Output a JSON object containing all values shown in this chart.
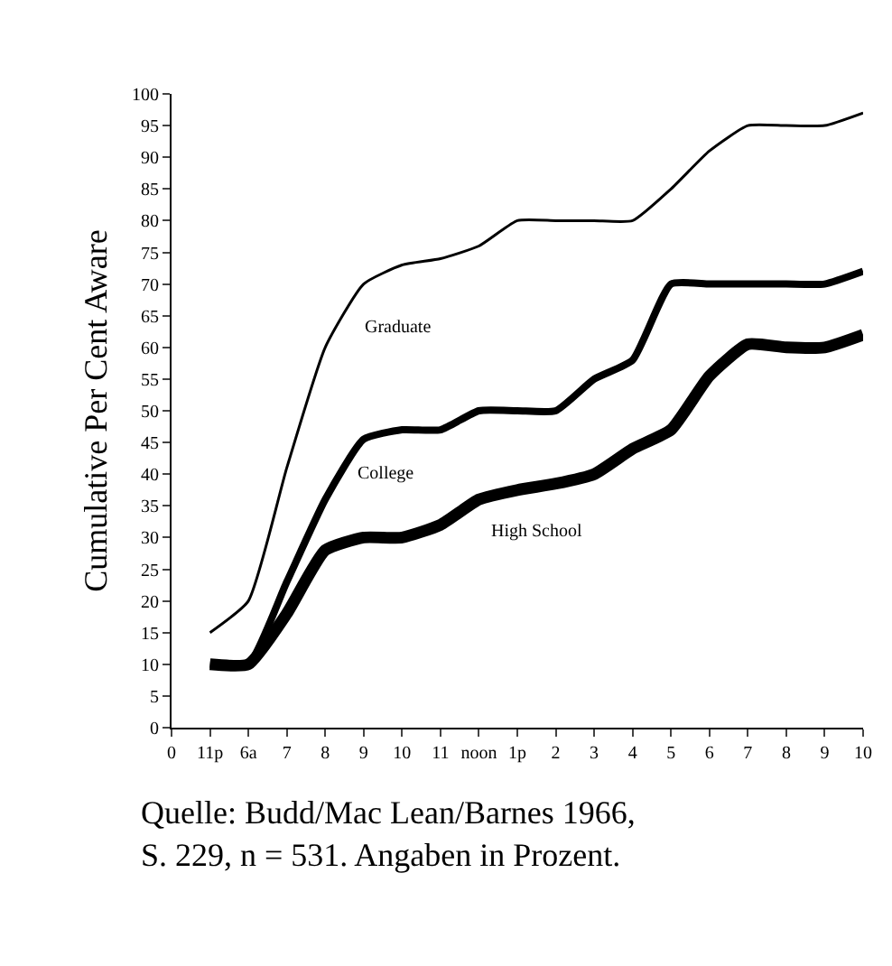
{
  "chart_data": {
    "type": "line",
    "ylabel": "Cumulative Per Cent Aware",
    "categories": [
      "0",
      "11p",
      "6a",
      "7",
      "8",
      "9",
      "10",
      "11",
      "noon",
      "1p",
      "2",
      "3",
      "4",
      "5",
      "6",
      "7",
      "8",
      "9",
      "10"
    ],
    "ylim": [
      0,
      100
    ],
    "yticks": [
      0,
      5,
      10,
      15,
      20,
      25,
      30,
      35,
      40,
      45,
      50,
      55,
      60,
      65,
      70,
      75,
      80,
      85,
      90,
      95,
      100
    ],
    "legend": false,
    "marker": "none",
    "line_style": "solid",
    "series": [
      {
        "name": "Graduate",
        "color": "#000000",
        "values": [
          null,
          15,
          20,
          41,
          60,
          70,
          73,
          74,
          76,
          80,
          80,
          80,
          80,
          85,
          91,
          95,
          95,
          95,
          97
        ]
      },
      {
        "name": "College",
        "color": "#000000",
        "values": [
          null,
          10,
          10,
          23,
          36,
          45.5,
          47,
          47,
          50,
          50,
          50,
          55,
          58,
          70,
          70,
          70,
          70,
          70,
          72
        ]
      },
      {
        "name": "High School",
        "color": "#000000",
        "values": [
          null,
          10,
          10,
          18,
          28,
          30,
          30,
          32,
          36,
          37.5,
          38.5,
          40,
          44,
          47,
          55.5,
          60.5,
          60,
          60,
          62
        ]
      }
    ],
    "annotations": [
      "Quelle: Budd/Mac Lean/Barnes 1966,\nS. 229, n = 531. Angaben in Prozent."
    ]
  }
}
